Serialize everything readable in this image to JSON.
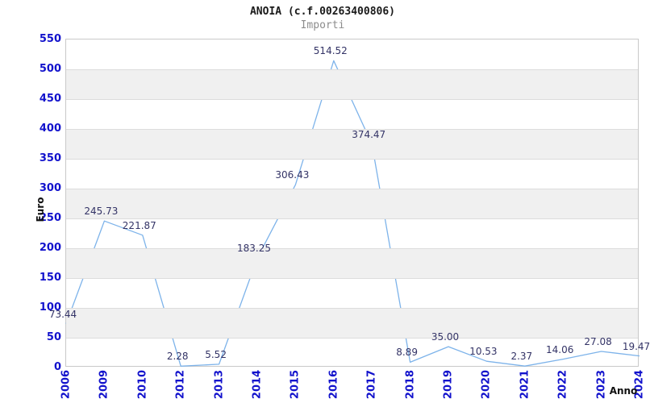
{
  "chart_data": {
    "type": "line",
    "title": "ANOIA (c.f.00263400806)",
    "subtitle": "Importi",
    "xlabel": "Anno",
    "ylabel": "Euro",
    "categories": [
      "2006",
      "2009",
      "2010",
      "2012",
      "2013",
      "2014",
      "2015",
      "2016",
      "2017",
      "2018",
      "2019",
      "2020",
      "2021",
      "2022",
      "2023",
      "2024"
    ],
    "values": [
      73.44,
      245.73,
      221.87,
      2.28,
      5.52,
      183.25,
      306.43,
      514.52,
      374.47,
      8.89,
      35.0,
      10.53,
      2.37,
      14.06,
      27.08,
      19.47
    ],
    "point_labels": [
      "73.44",
      "245.73",
      "221.87",
      "2.28",
      "5.52",
      "183.25",
      "306.43",
      "514.52",
      "374.47",
      "8.89",
      "35.00",
      "10.53",
      "2.37",
      "14.06",
      "27.08",
      "19.47"
    ],
    "ylim": [
      0,
      550
    ],
    "yticks": [
      0,
      50,
      100,
      150,
      200,
      250,
      300,
      350,
      400,
      450,
      500,
      550
    ],
    "grid": true,
    "legend": null,
    "colors": {
      "line": "#7db3ea",
      "point_label": "#333366",
      "tick_label": "#1212cc",
      "band": "#f0f0f0",
      "gridline": "#dcdcdc",
      "plot_border": "#c9c9c9",
      "title": "#1a1a1a",
      "subtitle": "#8c8c8c",
      "axis_title": "#111111"
    }
  }
}
